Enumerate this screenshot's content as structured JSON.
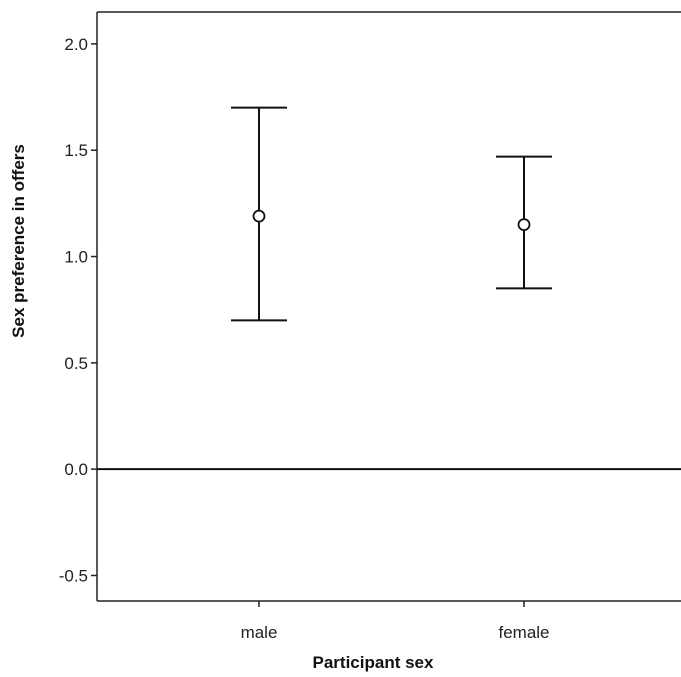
{
  "chart_data": {
    "type": "errorbar",
    "xlabel": "Participant sex",
    "ylabel": "Sex preference in offers",
    "categories": [
      "male",
      "female"
    ],
    "series": [
      {
        "values": [
          1.19,
          1.15
        ],
        "lower": [
          0.7,
          0.85
        ],
        "upper": [
          1.7,
          1.47
        ]
      }
    ],
    "ylim": [
      -0.62,
      2.15
    ],
    "yticks": [
      -0.5,
      0.0,
      0.5,
      1.0,
      1.5,
      2.0
    ],
    "ytick_labels": [
      "-0.5",
      "0.0",
      "0.5",
      "1.0",
      "1.5",
      "2.0"
    ],
    "reference_line": 0.0,
    "grid": false,
    "legend": "none"
  },
  "colors": {
    "axis": "#222222",
    "marks": "#111111",
    "background": "#ffffff"
  }
}
